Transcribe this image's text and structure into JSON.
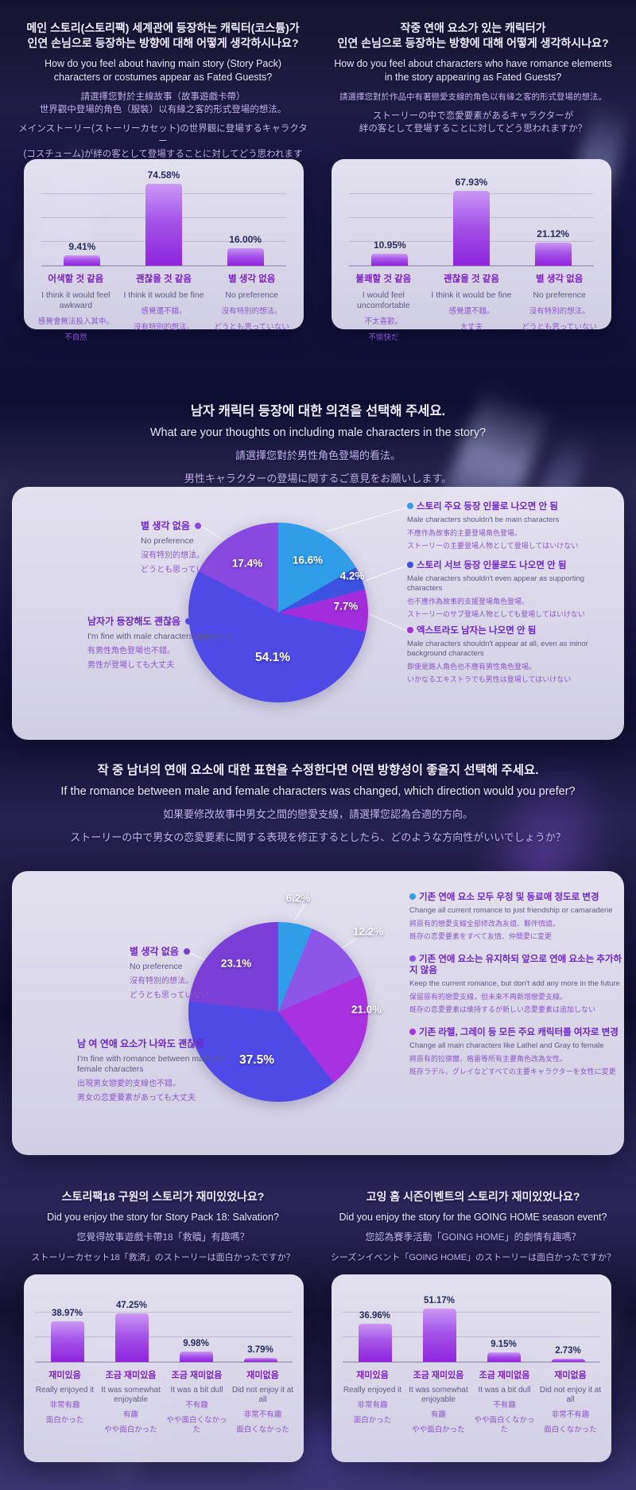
{
  "colors": {
    "background": "#14122f",
    "panel": "#e3e1f0",
    "bar_top": "#cb97f4",
    "bar_bottom": "#8f23dd",
    "bar_value_text": "#272b5e",
    "category_kr": "#7c1fc8",
    "category_en": "#5f5a82",
    "category_cjk": "#8a57cf",
    "title_kr": "#efeaff",
    "title_en": "#e9e5fb",
    "title_cjk": "#c2b3ec"
  },
  "headers": {
    "q1_left": {
      "kr1": "메인 스토리(스토리팩) 세계관에 등장하는 캐릭터(코스튬)가",
      "kr2": "인연 손님으로 등장하는 방향에 대해 어떻게 생각하시나요?",
      "en1": "How do you feel about having main story (Story Pack)",
      "en2": "characters or costumes appear as Fated Guests?",
      "zh1": "請選擇您對於主線故事（故事遊戲卡帶）",
      "zh2": "世界觀中登場的角色（服裝）以有緣之客的形式登場的想法。",
      "ja1": "メインストーリー(ストーリーカセット)の世界観に登場するキャラクター",
      "ja2": "(コスチューム)が絆の客として登場することに対してどう思われますか？"
    },
    "q1_right": {
      "kr1": "작중 연애 요소가 있는 캐릭터가",
      "kr2": "인연 손님으로 등장하는 방향에 대해 어떻게 생각하시나요?",
      "en1": "How do you feel about characters who have romance elements",
      "en2": "in the story appearing as Fated Guests?",
      "zh1": "請選擇您對於作品中有著戀愛支線的角色以有緣之客的形式登場的想法。",
      "ja1": "ストーリーの中で恋愛要素があるキャラクターが",
      "ja2": "絆の客として登場することに対してどう思われますか？"
    },
    "q2": {
      "kr": "남자 캐릭터 등장에 대한 의견을 선택해 주세요.",
      "en": "What are your thoughts on including male characters in the story?",
      "zh": "請選擇您對於男性角色登場的看法。",
      "ja": "男性キャラクターの登場に関するご意見をお願いします。"
    },
    "q3": {
      "kr": "작 중 남녀의 연애 요소에 대한 표현을 수정한다면 어떤 방향성이 좋을지 선택해 주세요.",
      "en": "If the romance between male and female characters was changed, which direction would you prefer?",
      "zh": "如果要修改故事中男女之間的戀愛支線，請選擇您認為合適的方向。",
      "ja": "ストーリーの中で男女の恋愛要素に関する表現を修正するとしたら、どのような方向性がいいでしょうか？"
    },
    "q4_left": {
      "kr": "스토리팩18 구원의 스토리가 재미있었나요?",
      "en": "Did you enjoy the story for Story Pack 18: Salvation?",
      "zh": "您覺得故事遊戲卡帶18「救贖」有趣嗎？",
      "ja": "ストーリーカセット18「救済」のストーリーは面白かったですか？"
    },
    "q4_right": {
      "kr": "고잉 홈 시즌이벤트의 스토리가 재미있었나요?",
      "en": "Did you enjoy the story for the GOING HOME season event?",
      "zh": "您認為賽季活動「GOING HOME」的劇情有趣嗎？",
      "ja": "シーズンイベント「GOING HOME」のストーリーは面白かったですか？"
    }
  },
  "chart_data": [
    {
      "type": "bar",
      "title": "Story Pack characters as Fated Guests",
      "ylim": [
        0,
        100
      ],
      "grid": true,
      "values": [
        9.41,
        74.58,
        16.0
      ],
      "value_labels": [
        "9.41%",
        "74.58%",
        "16.00%"
      ],
      "categories": [
        {
          "kr": "어색할 것 같음",
          "en": "I think it would feel awkward",
          "zh": "感覺會無法投入其中。",
          "ja": "不自然"
        },
        {
          "kr": "괜찮을 것 같음",
          "en": "I think it would be fine",
          "zh": "感覺還不錯。",
          "ja": "沒有特別的想法。"
        },
        {
          "kr": "별 생각 없음",
          "en": "No preference",
          "zh": "沒有特別的想法。",
          "ja": "どうとも思っていない"
        }
      ]
    },
    {
      "type": "bar",
      "title": "Romance characters as Fated Guests",
      "ylim": [
        0,
        100
      ],
      "grid": true,
      "values": [
        10.95,
        67.93,
        21.12
      ],
      "value_labels": [
        "10.95%",
        "67.93%",
        "21.12%"
      ],
      "categories": [
        {
          "kr": "불쾌할 것 같음",
          "en": "I would feel uncomfortable",
          "zh": "不太喜歡。",
          "ja": "不愉快だ"
        },
        {
          "kr": "괜찮을 것 같음",
          "en": "I think it would be fine",
          "zh": "感覺還不錯。",
          "ja": "大丈夫"
        },
        {
          "kr": "별 생각 없음",
          "en": "No preference",
          "zh": "沒有特別的想法。",
          "ja": "どうとも思っていない"
        }
      ]
    },
    {
      "type": "pie",
      "title": "Opinions on male characters",
      "legend_position": "right",
      "slices": [
        {
          "value": 16.6,
          "label": "16.6%",
          "color": "#2f9de8",
          "legend": {
            "kr": "스토리 주요 등장 인물로 나오면 안 됨",
            "en": "Male characters shouldn't be main characters",
            "zh": "不應作為故事的主要登場角色登場。",
            "ja": "ストーリーの主要登場人物として登場してはいけない"
          }
        },
        {
          "value": 4.2,
          "label": "4.2%",
          "color": "#3c52e0",
          "legend": {
            "kr": "스토리 서브 등장 인물로도 나오면 안 됨",
            "en": "Male characters shouldn't even appear as supporting characters",
            "zh": "也不應作為故事的支援登場角色登場。",
            "ja": "ストーリーのサブ登場人物としても登場してはいけない"
          }
        },
        {
          "value": 7.7,
          "label": "7.7%",
          "color": "#a32ddc",
          "legend": {
            "kr": "엑스트라도 남자는 나오면 안 됨",
            "en": "Male characters shouldn't appear at all, even as minor background characters",
            "zh": "即使是路人角色也不應有男性角色登場。",
            "ja": "いかなるエキストラでも男性は登場してはいけない"
          }
        },
        {
          "value": 54.1,
          "label": "54.1%",
          "color": "#4f49e6",
          "legend": {
            "kr": "남자가 등장해도 괜찮음",
            "en": "I'm fine with male characters appearing",
            "zh": "有男性角色登場也不錯。",
            "ja": "男性が登場しても大丈夫"
          }
        },
        {
          "value": 17.4,
          "label": "17.4%",
          "color": "#8948e0",
          "legend": {
            "kr": "별 생각 없음",
            "en": "No preference",
            "zh": "沒有特別的想法。",
            "ja": "どうとも思っていない"
          }
        }
      ]
    },
    {
      "type": "pie",
      "title": "Direction for romance elements",
      "legend_position": "right",
      "slices": [
        {
          "value": 6.2,
          "label": "6.2%",
          "color": "#2f9de8",
          "legend": {
            "kr": "기존 연애 요소 모두 우정 및 동료애 정도로 변경",
            "en": "Change all current romance to just friendship or camaraderie",
            "zh": "將原有的戀愛支線全部修改為友誼、夥伴情誼。",
            "ja": "既存の恋愛要素をすべて友情、仲間愛に変更"
          }
        },
        {
          "value": 12.2,
          "label": "12.2%",
          "color": "#8d56e8",
          "legend": {
            "kr": "기존 연애 요소는 유지하되 앞으로 연애 요소는 추가하지 않음",
            "en": "Keep the current romance, but don't add any more in the future",
            "zh": "保留原有的戀愛支線，但未來不再新增戀愛支線。",
            "ja": "既存の恋愛要素は維持するが新しい恋愛要素は追加しない"
          }
        },
        {
          "value": 21.0,
          "label": "21.0%",
          "color": "#a832e0",
          "legend": {
            "kr": "기존 라헬, 그레이 등 모든 주요 캐릭터를 여자로 변경",
            "en": "Change all main characters like Lathel and Gray to female",
            "zh": "將原有的拉德爾、格雷等所有主要角色改為女性。",
            "ja": "既存ラデル、グレイなどすべての主要キャラクターを女性に変更"
          }
        },
        {
          "value": 37.5,
          "label": "37.5%",
          "color": "#4f49e6",
          "legend": {
            "kr": "남 여 연애 요소가 나와도 괜찮음",
            "en": "I'm fine with romance between male and female characters",
            "zh": "出現男女戀愛的支線也不錯。",
            "ja": "男女の恋愛要素があっても大丈夫"
          }
        },
        {
          "value": 23.1,
          "label": "23.1%",
          "color": "#7b3fd8",
          "legend": {
            "kr": "별 생각 없음",
            "en": "No preference",
            "zh": "沒有特別的想法。",
            "ja": "どうとも思っていない"
          }
        }
      ]
    },
    {
      "type": "bar",
      "title": "Story Pack 18: Salvation enjoyment",
      "ylim": [
        0,
        100
      ],
      "grid": true,
      "values": [
        38.97,
        47.25,
        9.98,
        3.79
      ],
      "value_labels": [
        "38.97%",
        "47.25%",
        "9.98%",
        "3.79%"
      ],
      "categories": [
        {
          "kr": "재미있음",
          "en": "Really enjoyed it",
          "zh": "非常有趣",
          "ja": "面白かった"
        },
        {
          "kr": "조금 재미있음",
          "en": "It was somewhat enjoyable",
          "zh": "有趣",
          "ja": "やや面白かった"
        },
        {
          "kr": "조금 재미없음",
          "en": "It was a bit dull",
          "zh": "不有趣",
          "ja": "やや面白くなかった"
        },
        {
          "kr": "재미없음",
          "en": "Did not enjoy it at all",
          "zh": "非常不有趣",
          "ja": "面白くなかった"
        }
      ]
    },
    {
      "type": "bar",
      "title": "GOING HOME season event enjoyment",
      "ylim": [
        0,
        100
      ],
      "grid": true,
      "values": [
        36.96,
        51.17,
        9.15,
        2.73
      ],
      "value_labels": [
        "36.96%",
        "51.17%",
        "9.15%",
        "2.73%"
      ],
      "categories": [
        {
          "kr": "재미있음",
          "en": "Really enjoyed it",
          "zh": "非常有趣",
          "ja": "面白かった"
        },
        {
          "kr": "조금 재미있음",
          "en": "It was somewhat enjoyable",
          "zh": "有趣",
          "ja": "やや面白かった"
        },
        {
          "kr": "조금 재미없음",
          "en": "It was a bit dull",
          "zh": "不有趣",
          "ja": "やや面白くなかった"
        },
        {
          "kr": "재미없음",
          "en": "Did not enjoy it at all",
          "zh": "非常不有趣",
          "ja": "面白くなかった"
        }
      ]
    }
  ]
}
